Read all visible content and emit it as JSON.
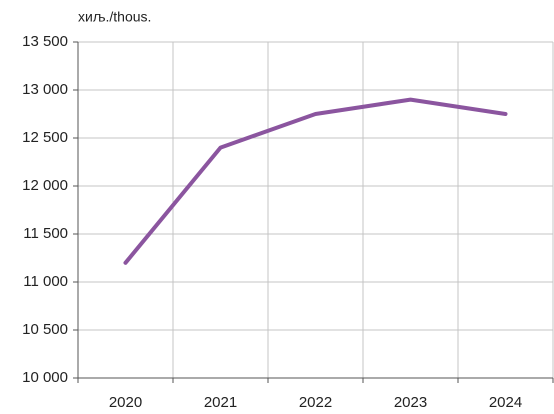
{
  "chart_data": {
    "type": "line",
    "unit_label": "хиљ./thous.",
    "categories": [
      "2020",
      "2021",
      "2022",
      "2023",
      "2024"
    ],
    "series": [
      {
        "color": "#8b559f",
        "values": [
          11200,
          12400,
          12750,
          12900,
          12750
        ]
      }
    ],
    "ylim": [
      10000,
      13500
    ],
    "yticks": [
      {
        "value": 10000,
        "label": "10 000"
      },
      {
        "value": 10500,
        "label": "10 500"
      },
      {
        "value": 11000,
        "label": "11 000"
      },
      {
        "value": 11500,
        "label": "11 500"
      },
      {
        "value": 12000,
        "label": "12 000"
      },
      {
        "value": 12500,
        "label": "12 500"
      },
      {
        "value": 13000,
        "label": "13 000"
      },
      {
        "value": 13500,
        "label": "13 500"
      }
    ],
    "grid": true
  }
}
